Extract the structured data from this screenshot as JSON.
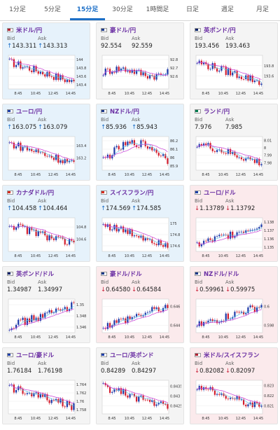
{
  "tabs": [
    {
      "label": "1分足",
      "active": false
    },
    {
      "label": "5分足",
      "active": false
    },
    {
      "label": "15分足",
      "active": true
    },
    {
      "label": "30分足",
      "active": false
    },
    {
      "label": "1時間足",
      "active": false
    },
    {
      "label": "日足",
      "active": false
    },
    {
      "label": "週足",
      "active": false
    },
    {
      "label": "月足",
      "active": false
    }
  ],
  "labels": {
    "bid": "Bid",
    "ask": "Ask"
  },
  "colors": {
    "up_candle": "#1f3aa8",
    "down_candle": "#d41f2f",
    "ma_line": "#c83cd6",
    "ma_line2": "#57c2e8",
    "up_bg": "#e6f2fb",
    "down_bg": "#fbeaec",
    "flat_bg": "#f4f4f4"
  },
  "cards": [
    {
      "pair": "米ドル/円",
      "flag": "us",
      "bid": "143.311",
      "ask": "143.313",
      "dir": "up",
      "chart": {
        "times": [
          "8:45",
          "10:45",
          "12:45",
          "14:45"
        ],
        "ticks": [
          "144",
          "143.8",
          "143.6",
          "143.4"
        ],
        "ylim": [
          143.3,
          144.1
        ],
        "trend": "down"
      }
    },
    {
      "pair": "豪ドル/円",
      "flag": "au",
      "bid": "92.554",
      "ask": "92.559",
      "dir": "flat",
      "chart": {
        "times": [
          "8:45",
          "10:45",
          "12:45",
          "14:45"
        ],
        "ticks": [
          "92.8",
          "92.7",
          "92.6"
        ],
        "ylim": [
          92.45,
          92.85
        ],
        "trend": "flat"
      }
    },
    {
      "pair": "英ポンド/円",
      "flag": "gb",
      "bid": "193.456",
      "ask": "193.463",
      "dir": "flat",
      "chart": {
        "times": [
          "8:45",
          "10:45",
          "12:45",
          "14:45"
        ],
        "ticks": [
          "193.8",
          "193.6"
        ],
        "ylim": [
          193.35,
          194.0
        ],
        "trend": "down"
      }
    },
    {
      "pair": "ユーロ/円",
      "flag": "eu",
      "bid": "163.075",
      "ask": "163.079",
      "dir": "up",
      "chart": {
        "times": [
          "8:45",
          "10:45",
          "12:45",
          "14:45"
        ],
        "ticks": [
          "163.4",
          "163.2"
        ],
        "ylim": [
          163.0,
          163.55
        ],
        "trend": "down"
      }
    },
    {
      "pair": "NZドル/円",
      "flag": "nz",
      "bid": "85.936",
      "ask": "85.943",
      "dir": "up",
      "chart": {
        "times": [
          "8:45",
          "10:45",
          "12:45",
          "14:45"
        ],
        "ticks": [
          "86.2",
          "86.1",
          "86",
          "85.9"
        ],
        "ylim": [
          85.85,
          86.25
        ],
        "trend": "updown"
      }
    },
    {
      "pair": "ランド/円",
      "flag": "za",
      "bid": "7.976",
      "ask": "7.985",
      "dir": "flat",
      "chart": {
        "times": [
          "8:45",
          "10:45",
          "12:45",
          "14:45"
        ],
        "ticks": [
          "8.01",
          "8",
          "7.99",
          "7.98"
        ],
        "ylim": [
          7.97,
          8.015
        ],
        "trend": "down"
      }
    },
    {
      "pair": "カナダドル/円",
      "flag": "ca",
      "bid": "104.458",
      "ask": "104.464",
      "dir": "up",
      "chart": {
        "times": [
          "8:45",
          "10:45",
          "12:45",
          "14:45"
        ],
        "ticks": [
          "104.8",
          "104.6"
        ],
        "ylim": [
          104.4,
          104.95
        ],
        "trend": "down"
      }
    },
    {
      "pair": "スイスフラン/円",
      "flag": "ch",
      "bid": "174.569",
      "ask": "174.585",
      "dir": "up",
      "chart": {
        "times": [
          "8:45",
          "10:45",
          "12:45",
          "14:45"
        ],
        "ticks": [
          "175",
          "174.8",
          "174.6"
        ],
        "ylim": [
          174.5,
          175.1
        ],
        "trend": "down"
      }
    },
    {
      "pair": "ユーロ/ドル",
      "flag": "eu",
      "bid": "1.13789",
      "ask": "1.13792",
      "dir": "down",
      "chart": {
        "times": [
          "8:45",
          "10:45",
          "12:45",
          "14:45"
        ],
        "ticks": [
          "1.138",
          "1.137",
          "1.136",
          "1.135"
        ],
        "ylim": [
          1.1345,
          1.1385
        ],
        "trend": "up"
      }
    },
    {
      "pair": "英ポンド/ドル",
      "flag": "gb",
      "bid": "1.34987",
      "ask": "1.34997",
      "dir": "flat",
      "chart": {
        "times": [
          "8:45",
          "10:45",
          "12:45",
          "14:45"
        ],
        "ticks": [
          "1.35",
          "1.348",
          "1.346"
        ],
        "ylim": [
          1.345,
          1.351
        ],
        "trend": "up"
      }
    },
    {
      "pair": "豪ドル/ドル",
      "flag": "au",
      "bid": "0.64580",
      "ask": "0.64584",
      "dir": "down",
      "chart": {
        "times": [
          "8:45",
          "10:45",
          "12:45",
          "14:45"
        ],
        "ticks": [
          "0.646",
          "0.644"
        ],
        "ylim": [
          0.6432,
          0.6468
        ],
        "trend": "up"
      }
    },
    {
      "pair": "NZドル/ドル",
      "flag": "nz",
      "bid": "0.59961",
      "ask": "0.59975",
      "dir": "down",
      "chart": {
        "times": [
          "8:45",
          "10:45",
          "12:45",
          "14:45"
        ],
        "ticks": [
          "0.6",
          "0.598"
        ],
        "ylim": [
          0.5972,
          0.6008
        ],
        "trend": "up"
      }
    },
    {
      "pair": "ユーロ/豪ドル",
      "flag": "eu",
      "bid": "1.76184",
      "ask": "1.76198",
      "dir": "flat",
      "chart": {
        "times": [
          "8:45",
          "10:45",
          "12:45",
          "14:45"
        ],
        "ticks": [
          "1.764",
          "1.762",
          "1.76",
          "1.758"
        ],
        "ylim": [
          1.757,
          1.765
        ],
        "trend": "down"
      }
    },
    {
      "pair": "ユーロ/英ポンド",
      "flag": "eu",
      "bid": "0.84289",
      "ask": "0.84297",
      "dir": "flat",
      "chart": {
        "times": [
          "8:45",
          "10:45",
          "12:45",
          "14:45"
        ],
        "ticks": [
          "0.8435",
          "0.843",
          "0.8425"
        ],
        "ylim": [
          0.8421,
          0.8438
        ],
        "trend": "down"
      }
    },
    {
      "pair": "米ドル/スイスフラン",
      "flag": "us",
      "bid": "0.82082",
      "ask": "0.82097",
      "dir": "down",
      "chart": {
        "times": [
          "8:45",
          "10:45",
          "12:45",
          "14:45"
        ],
        "ticks": [
          "0.823",
          "0.822",
          "0.821"
        ],
        "ylim": [
          0.8202,
          0.8235
        ],
        "trend": "down"
      }
    }
  ]
}
